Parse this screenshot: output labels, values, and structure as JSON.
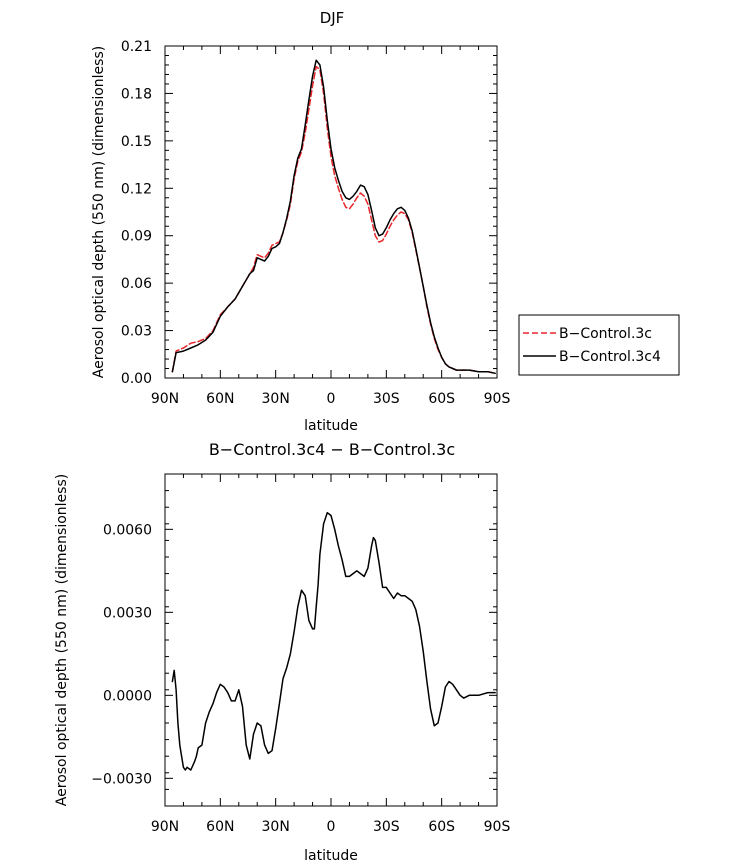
{
  "chart_data": [
    {
      "type": "line",
      "title": "DJF",
      "xlabel": "latitude",
      "ylabel": "Aerosol optical depth (550 nm) (dimensionless)",
      "xlim": [
        90,
        -90
      ],
      "ylim": [
        0,
        0.21
      ],
      "x_ticks": [
        90,
        60,
        30,
        0,
        -30,
        -60,
        -90
      ],
      "x_tick_labels": [
        "90N",
        "60N",
        "30N",
        "0",
        "30S",
        "60S",
        "90S"
      ],
      "y_ticks": [
        0,
        0.03,
        0.06,
        0.09,
        0.12,
        0.15,
        0.18,
        0.21
      ],
      "y_tick_labels": [
        "0.00",
        "0.03",
        "0.06",
        "0.09",
        "0.12",
        "0.15",
        "0.18",
        "0.21"
      ],
      "legend_position": "right",
      "series": [
        {
          "name": "B−Control.3c",
          "color": "#e8262a",
          "dash": "dashed",
          "x": [
            86,
            84,
            80,
            76,
            72,
            68,
            64,
            60,
            56,
            52,
            48,
            44,
            42,
            40,
            38,
            36,
            34,
            32,
            30,
            28,
            26,
            24,
            22,
            20,
            18,
            16,
            14,
            12,
            10,
            8,
            6,
            4,
            2,
            0,
            -2,
            -4,
            -6,
            -8,
            -10,
            -12,
            -14,
            -16,
            -18,
            -20,
            -22,
            -24,
            -26,
            -28,
            -30,
            -32,
            -34,
            -36,
            -38,
            -40,
            -42,
            -44,
            -46,
            -48,
            -50,
            -52,
            -54,
            -56,
            -58,
            -60,
            -62,
            -64,
            -66,
            -68,
            -70,
            -72,
            -75,
            -80,
            -85,
            -89
          ],
          "y": [
            0.004,
            0.017,
            0.019,
            0.022,
            0.023,
            0.025,
            0.03,
            0.04,
            0.045,
            0.05,
            0.058,
            0.066,
            0.07,
            0.078,
            0.077,
            0.076,
            0.079,
            0.084,
            0.085,
            0.086,
            0.092,
            0.1,
            0.11,
            0.126,
            0.137,
            0.143,
            0.155,
            0.17,
            0.185,
            0.197,
            0.195,
            0.18,
            0.158,
            0.14,
            0.128,
            0.12,
            0.113,
            0.108,
            0.107,
            0.11,
            0.114,
            0.117,
            0.115,
            0.11,
            0.1,
            0.09,
            0.086,
            0.087,
            0.091,
            0.096,
            0.1,
            0.103,
            0.105,
            0.104,
            0.1,
            0.092,
            0.081,
            0.07,
            0.058,
            0.045,
            0.034,
            0.025,
            0.018,
            0.013,
            0.009,
            0.007,
            0.006,
            0.005,
            0.005,
            0.005,
            0.005,
            0.004,
            0.004,
            0.003
          ]
        },
        {
          "name": "B−Control.3c4",
          "color": "#000000",
          "dash": "solid",
          "x": [
            86,
            84,
            80,
            76,
            72,
            68,
            64,
            60,
            56,
            52,
            48,
            44,
            42,
            40,
            38,
            36,
            34,
            32,
            30,
            28,
            26,
            24,
            22,
            20,
            18,
            16,
            14,
            12,
            10,
            8,
            6,
            4,
            2,
            0,
            -2,
            -4,
            -6,
            -8,
            -10,
            -12,
            -14,
            -16,
            -18,
            -20,
            -22,
            -24,
            -26,
            -28,
            -30,
            -32,
            -34,
            -36,
            -38,
            -40,
            -42,
            -44,
            -46,
            -48,
            -50,
            -52,
            -54,
            -56,
            -58,
            -60,
            -62,
            -64,
            -66,
            -68,
            -70,
            -72,
            -75,
            -80,
            -85,
            -89
          ],
          "y": [
            0.004,
            0.016,
            0.017,
            0.019,
            0.021,
            0.024,
            0.029,
            0.039,
            0.045,
            0.05,
            0.058,
            0.066,
            0.068,
            0.076,
            0.075,
            0.074,
            0.077,
            0.082,
            0.083,
            0.085,
            0.092,
            0.101,
            0.112,
            0.128,
            0.139,
            0.145,
            0.16,
            0.176,
            0.191,
            0.201,
            0.198,
            0.184,
            0.163,
            0.145,
            0.133,
            0.125,
            0.118,
            0.114,
            0.113,
            0.115,
            0.118,
            0.122,
            0.121,
            0.116,
            0.106,
            0.095,
            0.09,
            0.091,
            0.095,
            0.1,
            0.104,
            0.107,
            0.108,
            0.106,
            0.101,
            0.093,
            0.082,
            0.07,
            0.058,
            0.046,
            0.035,
            0.026,
            0.019,
            0.013,
            0.009,
            0.007,
            0.006,
            0.005,
            0.005,
            0.005,
            0.005,
            0.004,
            0.004,
            0.003
          ]
        }
      ]
    },
    {
      "type": "line",
      "title": "B−Control.3c4 − B−Control.3c",
      "xlabel": "latitude",
      "ylabel": "Aerosol optical depth (550 nm) (dimensionless)",
      "xlim": [
        90,
        -90
      ],
      "ylim": [
        -0.004,
        0.008
      ],
      "x_ticks": [
        90,
        60,
        30,
        0,
        -30,
        -60,
        -90
      ],
      "x_tick_labels": [
        "90N",
        "60N",
        "30N",
        "0",
        "30S",
        "60S",
        "90S"
      ],
      "y_ticks": [
        -0.003,
        0,
        0.003,
        0.006
      ],
      "y_tick_labels": [
        "−0.0030",
        "0.0000",
        "0.0030",
        "0.0060"
      ],
      "series": [
        {
          "name": "difference",
          "color": "#000000",
          "dash": "solid",
          "x": [
            86,
            85,
            84,
            83,
            82,
            81,
            80,
            79,
            78,
            76,
            74,
            73,
            72,
            70,
            68,
            66,
            64,
            62,
            60,
            58,
            56,
            54,
            52,
            50,
            48,
            46,
            44,
            42,
            40,
            38,
            36,
            34,
            32,
            30,
            28,
            26,
            24,
            22,
            20,
            18,
            16,
            14,
            12,
            10,
            9,
            8,
            7,
            6,
            4,
            2,
            0,
            -2,
            -4,
            -6,
            -8,
            -10,
            -12,
            -14,
            -16,
            -18,
            -20,
            -22,
            -23,
            -24,
            -26,
            -28,
            -30,
            -32,
            -34,
            -36,
            -38,
            -40,
            -42,
            -44,
            -46,
            -48,
            -50,
            -52,
            -54,
            -56,
            -58,
            -60,
            -62,
            -64,
            -66,
            -68,
            -70,
            -72,
            -75,
            -80,
            -85,
            -89
          ],
          "y": [
            0.0005,
            0.0009,
            0.0002,
            -0.001,
            -0.0018,
            -0.0022,
            -0.0026,
            -0.0027,
            -0.0026,
            -0.0027,
            -0.0024,
            -0.0022,
            -0.0019,
            -0.0018,
            -0.001,
            -0.0006,
            -0.0003,
            0.0001,
            0.0004,
            0.0003,
            0.0001,
            -0.0002,
            -0.0002,
            0.0002,
            -0.0004,
            -0.0018,
            -0.0023,
            -0.0014,
            -0.001,
            -0.0011,
            -0.0018,
            -0.0021,
            -0.002,
            -0.0012,
            -0.0003,
            0.0006,
            0.001,
            0.0015,
            0.0023,
            0.0032,
            0.0038,
            0.0036,
            0.0027,
            0.0024,
            0.0024,
            0.0032,
            0.004,
            0.0051,
            0.0062,
            0.0066,
            0.0065,
            0.006,
            0.0054,
            0.0049,
            0.0043,
            0.0043,
            0.0044,
            0.0045,
            0.0044,
            0.0043,
            0.0046,
            0.0054,
            0.0057,
            0.0056,
            0.0048,
            0.0039,
            0.0039,
            0.0037,
            0.0035,
            0.0037,
            0.0036,
            0.0036,
            0.0035,
            0.0034,
            0.0031,
            0.0025,
            0.0016,
            0.0005,
            -0.0005,
            -0.0011,
            -0.001,
            -0.0004,
            0.0003,
            0.0005,
            0.0004,
            0.0002,
            0.0,
            -0.0001,
            0.0,
            0.0,
            0.0001,
            0.0001
          ]
        }
      ]
    }
  ]
}
